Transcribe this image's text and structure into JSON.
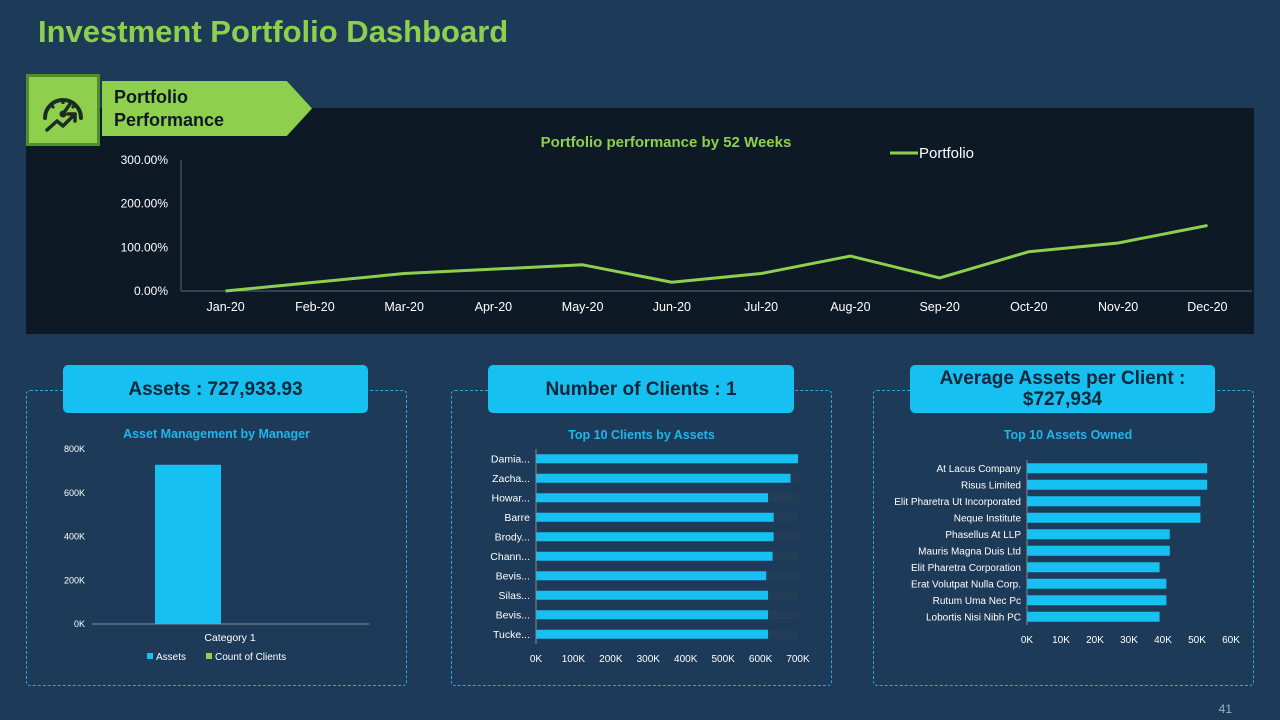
{
  "page": {
    "title": "Investment Portfolio Dashboard",
    "page_number": "41"
  },
  "performance": {
    "label_line1": "Portfolio",
    "label_line2": "Performance",
    "icon": "speedometer-growth-icon"
  },
  "sections": {
    "assets_header": "Assets : 727,933.93",
    "clients_header": "Number of Clients : 1",
    "avg_header": "Average Assets per Client : $727,934"
  },
  "colors": {
    "accent_green": "#8ed04d",
    "accent_blue": "#16c0f0",
    "background": "#1d3a59",
    "panel": "#0d1a26"
  },
  "chart_data": [
    {
      "id": "portfolio",
      "type": "line",
      "title": "Portfolio performance by 52 Weeks",
      "x": [
        "Jan-20",
        "Feb-20",
        "Mar-20",
        "Apr-20",
        "May-20",
        "Jun-20",
        "Jul-20",
        "Aug-20",
        "Sep-20",
        "Oct-20",
        "Nov-20",
        "Dec-20"
      ],
      "series": [
        {
          "name": "Portfolio",
          "values": [
            0,
            20,
            40,
            50,
            60,
            20,
            40,
            80,
            30,
            90,
            110,
            150
          ]
        }
      ],
      "y_ticks": [
        "0.00%",
        "100.00%",
        "200.00%",
        "300.00%"
      ],
      "ylim": [
        0,
        300
      ],
      "legend": "top-right"
    },
    {
      "id": "manager",
      "type": "bar",
      "title": "Asset  Management by Manager",
      "categories": [
        "Category 1"
      ],
      "series": [
        {
          "name": "Assets",
          "values": [
            727934
          ]
        },
        {
          "name": "Count of  Clients",
          "values": [
            1
          ]
        }
      ],
      "y_ticks": [
        "0K",
        "200K",
        "400K",
        "600K",
        "800K"
      ],
      "ylim": [
        0,
        800000
      ],
      "legend": "bottom"
    },
    {
      "id": "clients",
      "type": "bar",
      "orientation": "horizontal",
      "title": "Top 10 Clients by Assets",
      "categories": [
        "Damia...",
        "Zacha...",
        "Howar...",
        "Barre",
        "Brody...",
        "Chann...",
        "Bevis...",
        "Silas...",
        "Bevis...",
        "Tucke..."
      ],
      "values": [
        700000,
        680000,
        620000,
        635000,
        635000,
        632000,
        615000,
        620000,
        620000,
        620000
      ],
      "x_ticks": [
        "0K",
        "100K",
        "200K",
        "300K",
        "400K",
        "500K",
        "600K",
        "700K"
      ],
      "xlim": [
        0,
        700000
      ]
    },
    {
      "id": "assets_owned",
      "type": "bar",
      "orientation": "horizontal",
      "title": "Top 10 Assets  Owned",
      "categories": [
        "At Lacus Company",
        "Risus Limited",
        "Elit Pharetra Ut Incorporated",
        "Neque Institute",
        "Phasellus At LLP",
        "Mauris Magna Duis Ltd",
        "Elit Pharetra Corporation",
        "Erat Volutpat Nulla Corp.",
        "Rutum Uma Nec Pc",
        "Lobortis Nisi Nibh PC"
      ],
      "values": [
        53000,
        53000,
        51000,
        51000,
        42000,
        42000,
        39000,
        41000,
        41000,
        39000
      ],
      "x_ticks": [
        "0K",
        "10K",
        "20K",
        "30K",
        "40K",
        "50K",
        "60K"
      ],
      "xlim": [
        0,
        60000
      ]
    }
  ]
}
